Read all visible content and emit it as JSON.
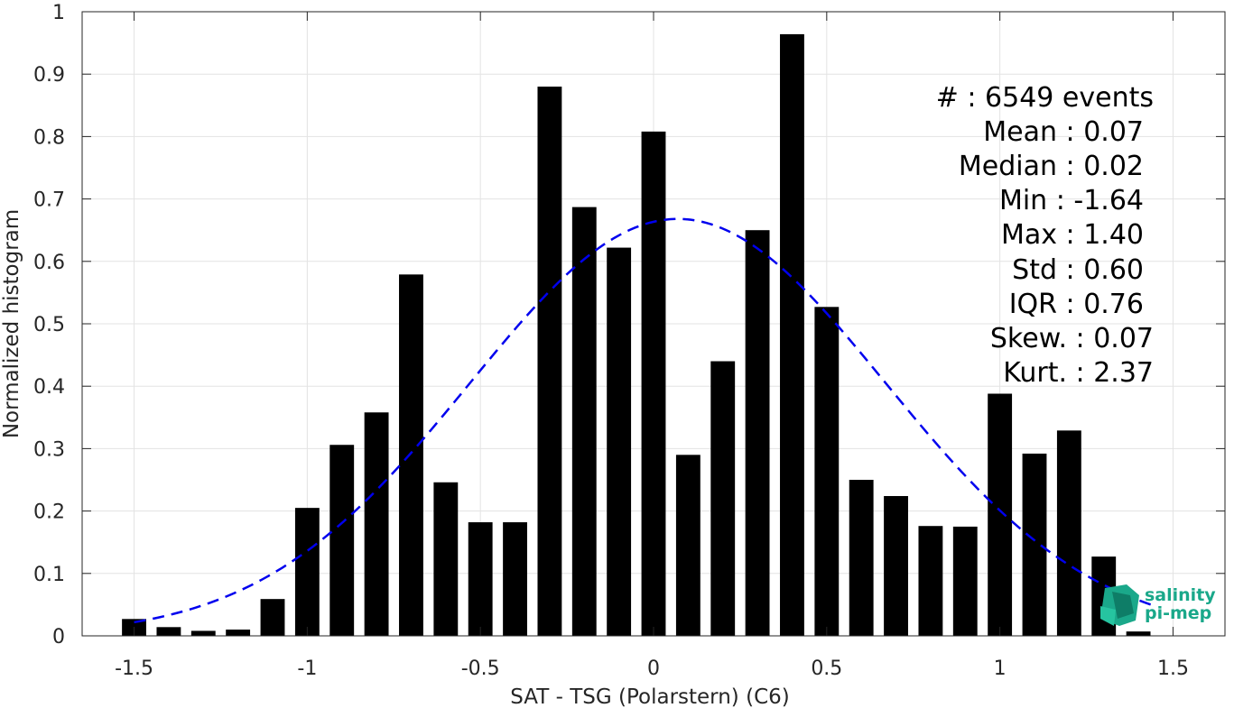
{
  "chart_data": {
    "type": "bar",
    "title": "",
    "xlabel": "SAT - TSG (Polarstern) (C6)",
    "ylabel": "Normalized histogram",
    "xlim": [
      -1.65,
      1.65
    ],
    "ylim": [
      0,
      1
    ],
    "grid": true,
    "x_ticks": [
      -1.5,
      -1,
      -0.5,
      0,
      0.5,
      1,
      1.5
    ],
    "x_tick_labels": [
      "-1.5",
      "-1",
      "-0.5",
      "0",
      "0.5",
      "1",
      "1.5"
    ],
    "y_ticks": [
      0,
      0.1,
      0.2,
      0.3,
      0.4,
      0.5,
      0.6,
      0.7,
      0.8,
      0.9,
      1
    ],
    "y_tick_labels": [
      "0",
      "0.1",
      "0.2",
      "0.3",
      "0.4",
      "0.5",
      "0.6",
      "0.7",
      "0.8",
      "0.9",
      "1"
    ],
    "bar_width": 0.07,
    "series": [
      {
        "x": [
          -1.5,
          -1.4,
          -1.3,
          -1.2,
          -1.1,
          -1.0,
          -0.9,
          -0.8,
          -0.7,
          -0.6,
          -0.5,
          -0.4,
          -0.3,
          -0.2,
          -0.1,
          0.0,
          0.1,
          0.2,
          0.3,
          0.4,
          0.5,
          0.6,
          0.7,
          0.8,
          0.9,
          1.0,
          1.1,
          1.2,
          1.3,
          1.4
        ],
        "values": [
          0.027,
          0.014,
          0.008,
          0.01,
          0.059,
          0.205,
          0.306,
          0.358,
          0.579,
          0.246,
          0.182,
          0.182,
          0.88,
          0.687,
          0.622,
          0.808,
          0.29,
          0.44,
          0.65,
          0.964,
          0.527,
          0.25,
          0.224,
          0.176,
          0.175,
          0.388,
          0.292,
          0.329,
          0.127,
          0.007
        ],
        "color": "#000000"
      },
      {
        "type": "line",
        "style": "dashed",
        "color": "#0000ee",
        "fit": "normal",
        "mean": 0.07,
        "std": 0.6,
        "peak": 0.668,
        "x_range": [
          -1.5,
          1.45
        ]
      }
    ]
  },
  "stats": {
    "lines": [
      "#  : 6549 events",
      "Mean : 0.07",
      "Median : 0.02",
      "Min : -1.64",
      "Max : 1.40",
      "Std : 0.60",
      "IQR : 0.76",
      "Skew. : 0.07",
      "Kurt. : 2.37"
    ]
  },
  "logo": {
    "line1": "salinity",
    "line2": "pi-mep",
    "color": "#1aa88a"
  }
}
